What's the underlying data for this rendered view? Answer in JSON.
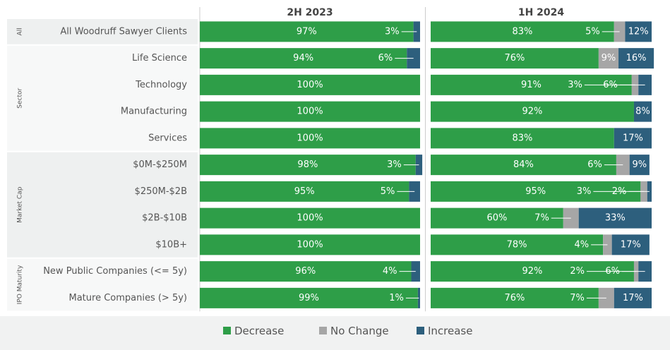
{
  "chart_data": {
    "type": "bar",
    "orientation": "horizontal",
    "stacked": true,
    "groups": [
      {
        "label": "All",
        "categories": [
          "All Woodruff Sawyer Clients"
        ]
      },
      {
        "label": "Sector",
        "categories": [
          "Life Science",
          "Technology",
          "Manufacturing",
          "Services"
        ]
      },
      {
        "label": "Market Cap",
        "categories": [
          "$0M-$250M",
          "$250M-$2B",
          "$2B-$10B",
          "$10B+"
        ]
      },
      {
        "label": "IPO Maturity",
        "categories": [
          "New Public Companies (<= 5y)",
          "Mature Companies (> 5y)"
        ]
      }
    ],
    "legend": [
      {
        "name": "Decrease",
        "color": "#2e9e48"
      },
      {
        "name": "No Change",
        "color": "#a6a6a6"
      },
      {
        "name": "Increase",
        "color": "#2d5f7d"
      }
    ],
    "xlim": [
      0,
      100
    ],
    "panels": [
      {
        "title": "2H 2023",
        "series": [
          {
            "values": [
              97,
              94,
              100,
              100,
              100,
              98,
              95,
              100,
              100,
              96,
              99
            ],
            "value_labels": [
              "97%",
              "94%",
              "100%",
              "100%",
              "100%",
              "98%",
              "95%",
              "100%",
              "100%",
              "96%",
              "99%"
            ]
          },
          {
            "values": [
              null,
              null,
              null,
              null,
              null,
              null,
              null,
              null,
              null,
              null,
              null
            ],
            "value_labels": [
              null,
              null,
              null,
              null,
              null,
              null,
              null,
              null,
              null,
              null,
              null
            ]
          },
          {
            "values": [
              3,
              6,
              null,
              null,
              null,
              3,
              5,
              null,
              null,
              4,
              1
            ],
            "value_labels": [
              "3%",
              "6%",
              null,
              null,
              null,
              "3%",
              "5%",
              null,
              null,
              "4%",
              "1%"
            ]
          }
        ]
      },
      {
        "title": "1H 2024",
        "series": [
          {
            "values": [
              83,
              76,
              91,
              92,
              83,
              84,
              95,
              60,
              78,
              92,
              76
            ],
            "value_labels": [
              "83%",
              "76%",
              "91%",
              "92%",
              "83%",
              "84%",
              "95%",
              "60%",
              "78%",
              "92%",
              "76%"
            ]
          },
          {
            "values": [
              5,
              9,
              3,
              null,
              null,
              6,
              3,
              7,
              4,
              2,
              7
            ],
            "value_labels": [
              "5%",
              "9%",
              "3%",
              null,
              null,
              "6%",
              "3%",
              "7%",
              "4%",
              "2%",
              "7%"
            ]
          },
          {
            "values": [
              12,
              16,
              6,
              8,
              17,
              9,
              2,
              33,
              17,
              6,
              17
            ],
            "value_labels": [
              "12%",
              "16%",
              "6%",
              "8%",
              "17%",
              "9%",
              "2%",
              "33%",
              "17%",
              "6%",
              "17%"
            ]
          }
        ]
      }
    ]
  }
}
